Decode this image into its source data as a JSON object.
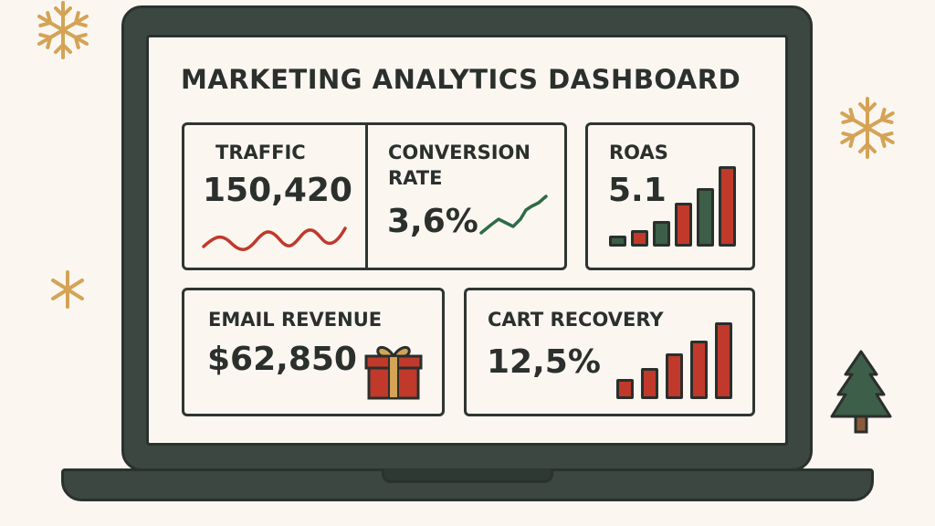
{
  "dashboard": {
    "title": "MARKETING ANALYTICS DASHBOARD",
    "traffic": {
      "label": "TRAFFIC",
      "value": "150,420",
      "sparkline_color": "#c0392b"
    },
    "conversion": {
      "label_line1": "CONVERSION",
      "label_line2": "RATE",
      "value": "3,6%",
      "sparkline_color": "#2e6b47"
    },
    "roas": {
      "label": "ROAS",
      "value": "5.1",
      "bars": [
        12,
        18,
        28,
        48,
        64,
        88
      ],
      "bar_colors": [
        "#3d5e48",
        "#c0392b",
        "#3d5e48",
        "#c0392b",
        "#3d5e48",
        "#c0392b"
      ]
    },
    "email_revenue": {
      "label": "EMAIL REVENUE",
      "value": "$62,850",
      "icon": "gift-icon"
    },
    "cart_recovery": {
      "label": "CART RECOVERY",
      "value": "12,5%",
      "bars": [
        22,
        34,
        50,
        64,
        84
      ],
      "bar_color": "#c0392b"
    }
  },
  "decorations": [
    "snowflake-icon",
    "snowflake-icon",
    "sparkle-icon",
    "christmas-tree-icon"
  ],
  "colors": {
    "laptop": "#3b4740",
    "screen": "#fbf7f0",
    "red": "#c0392b",
    "green": "#3d5e48",
    "gold": "#d4a356"
  }
}
